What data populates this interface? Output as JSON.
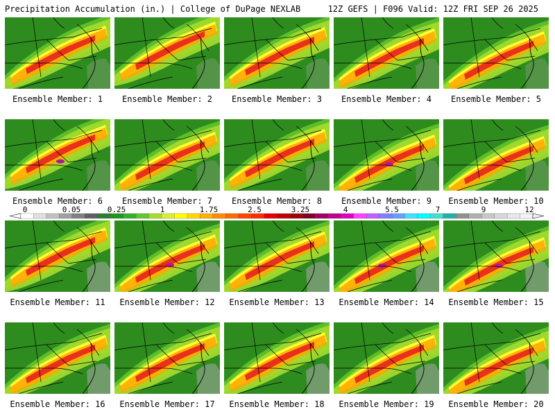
{
  "header": {
    "left": "Precipitation Accumulation (in.) | College of DuPage NEXLAB",
    "right": "12Z GEFS | F096 Valid: 12Z FRI SEP 26 2025"
  },
  "colorbar": {
    "labels": [
      "0",
      "0.05",
      "0.25",
      "1",
      "1.75",
      "2.5",
      "3.25",
      "4",
      "5.5",
      "7",
      "9",
      "12"
    ],
    "colors": [
      "#ffffff",
      "#e0e0e0",
      "#c0c0c0",
      "#a0a0a0",
      "#808080",
      "#606060",
      "#2e7d32",
      "#1e9620",
      "#36b02c",
      "#62c830",
      "#a6dc2e",
      "#d8ef2e",
      "#ffff00",
      "#ffd700",
      "#ffb000",
      "#ff8c00",
      "#ff6a00",
      "#ff4500",
      "#ff2a00",
      "#e60000",
      "#c00000",
      "#a00000",
      "#800020",
      "#a00060",
      "#c00090",
      "#e000c0",
      "#ff40ff",
      "#c060ff",
      "#8080ff",
      "#60a0ff",
      "#40e0ff",
      "#00ffff",
      "#40e0d0",
      "#20b2aa",
      "#909090",
      "#b0b0b0",
      "#c8c8c8",
      "#d8d8d8",
      "#e8e8e8",
      "#f4f4f4"
    ]
  },
  "members": [
    {
      "label": "Ensemble Member: 1"
    },
    {
      "label": "Ensemble Member: 2"
    },
    {
      "label": "Ensemble Member: 3"
    },
    {
      "label": "Ensemble Member: 4"
    },
    {
      "label": "Ensemble Member: 5"
    },
    {
      "label": "Ensemble Member: 6"
    },
    {
      "label": "Ensemble Member: 7"
    },
    {
      "label": "Ensemble Member: 8"
    },
    {
      "label": "Ensemble Member: 9"
    },
    {
      "label": "Ensemble Member: 10"
    },
    {
      "label": "Ensemble Member: 11"
    },
    {
      "label": "Ensemble Member: 12"
    },
    {
      "label": "Ensemble Member: 13"
    },
    {
      "label": "Ensemble Member: 14"
    },
    {
      "label": "Ensemble Member: 15"
    },
    {
      "label": "Ensemble Member: 16"
    },
    {
      "label": "Ensemble Member: 17"
    },
    {
      "label": "Ensemble Member: 18"
    },
    {
      "label": "Ensemble Member: 19"
    },
    {
      "label": "Ensemble Member: 20"
    }
  ],
  "palette": {
    "land": "#2e8b1e",
    "light_green": "#5cbf2a",
    "yellow_green": "#a6dc2e",
    "yellow": "#ffff33",
    "orange": "#ffa500",
    "red": "#e8301a",
    "magenta": "#b0179a",
    "gray": "#a9a9a9",
    "border": "#000000"
  }
}
